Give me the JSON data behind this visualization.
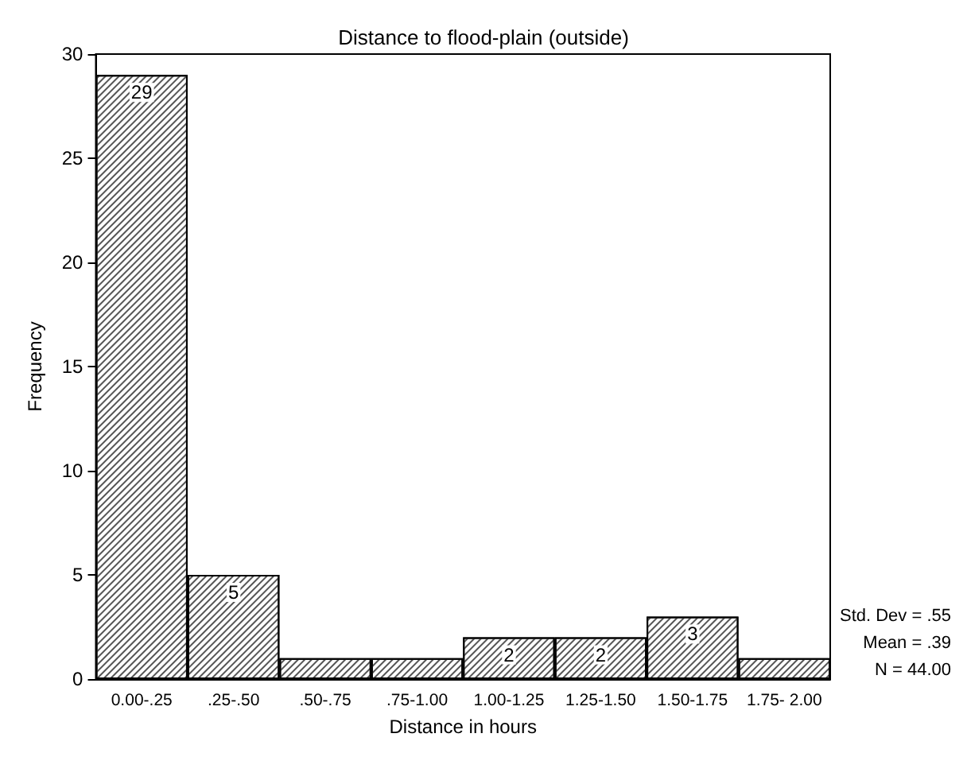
{
  "chart_data": {
    "type": "bar",
    "title": "Distance to flood-plain (outside)",
    "xlabel": "Distance in hours",
    "ylabel": "Frequency",
    "categories": [
      "0.00-.25",
      ".25-.50",
      ".50-.75",
      ".75-1.00",
      "1.00-1.25",
      "1.25-1.50",
      "1.50-1.75",
      "1.75- 2.00"
    ],
    "values": [
      29,
      5,
      1,
      1,
      2,
      2,
      3,
      1
    ],
    "value_labels": [
      "29",
      "5",
      null,
      null,
      "2",
      "2",
      "3",
      null
    ],
    "color": "#ffffff",
    "ylim": [
      0,
      30
    ],
    "yticks": [
      0,
      5,
      10,
      15,
      20,
      25,
      30
    ],
    "grid": false,
    "annotations": [
      "Std. Dev = .55",
      "Mean = .39",
      "N = 44.00"
    ]
  }
}
